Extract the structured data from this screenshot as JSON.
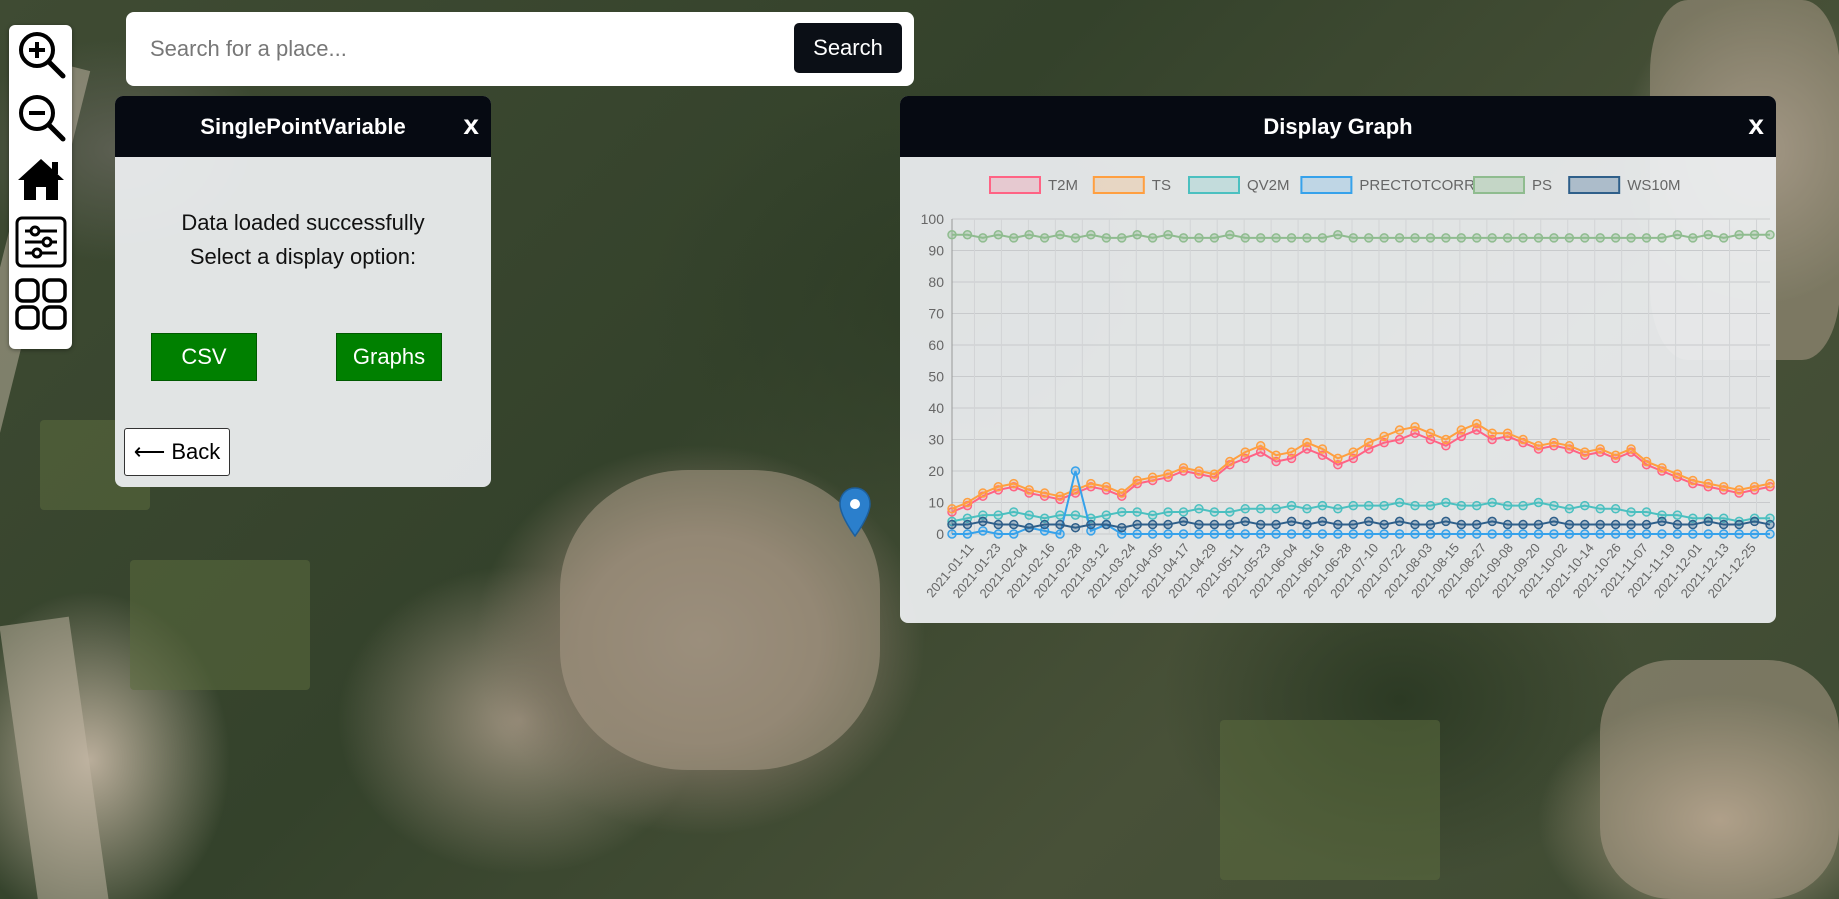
{
  "search": {
    "placeholder": "Search for a place...",
    "button_label": "Search"
  },
  "toolbar": {
    "tools": [
      {
        "icon": "zoom-in-icon"
      },
      {
        "icon": "zoom-out-icon"
      },
      {
        "icon": "home-icon"
      },
      {
        "icon": "sliders-icon"
      },
      {
        "icon": "grid-icon"
      }
    ]
  },
  "single_point_panel": {
    "title": "SinglePointVariable",
    "close_label": "x",
    "message_line1": "Data loaded successfully",
    "message_line2": "Select a display option:",
    "csv_label": "CSV",
    "graphs_label": "Graphs",
    "back_label": "⟵ Back"
  },
  "graph_panel": {
    "title": "Display Graph",
    "close_label": "x"
  },
  "colors": {
    "header_bg": "#060a12",
    "button_green": "#008000",
    "marker_blue": "#2b7fcc"
  },
  "chart_data": {
    "type": "line",
    "x_ticks": [
      "2021-01-11",
      "2021-01-23",
      "2021-02-04",
      "2021-02-16",
      "2021-02-28",
      "2021-03-12",
      "2021-03-24",
      "2021-04-05",
      "2021-04-17",
      "2021-04-29",
      "2021-05-11",
      "2021-05-23",
      "2021-06-04",
      "2021-06-16",
      "2021-06-28",
      "2021-07-10",
      "2021-07-22",
      "2021-08-03",
      "2021-08-15",
      "2021-08-27",
      "2021-09-08",
      "2021-09-20",
      "2021-10-02",
      "2021-10-14",
      "2021-10-26",
      "2021-11-07",
      "2021-11-19",
      "2021-12-01",
      "2021-12-13",
      "2021-12-25"
    ],
    "x_range": [
      "2021-01-01",
      "2021-12-31"
    ],
    "ylim": [
      0,
      100
    ],
    "y_ticks": [
      0,
      10,
      20,
      30,
      40,
      50,
      60,
      70,
      80,
      90,
      100
    ],
    "grid": true,
    "legend_position": "top",
    "series": [
      {
        "name": "T2M",
        "color": "#ff6384",
        "fill": "rgba(255,99,132,0.2)",
        "values": [
          7,
          9,
          12,
          14,
          15,
          13,
          12,
          11,
          13,
          15,
          14,
          12,
          16,
          17,
          18,
          20,
          19,
          18,
          22,
          24,
          26,
          23,
          24,
          27,
          25,
          22,
          24,
          27,
          29,
          30,
          32,
          30,
          28,
          31,
          33,
          30,
          31,
          29,
          27,
          28,
          27,
          25,
          26,
          24,
          26,
          22,
          20,
          18,
          16,
          15,
          14,
          13,
          14,
          15
        ]
      },
      {
        "name": "TS",
        "color": "#ff9f40",
        "fill": "rgba(255,159,64,0.2)",
        "values": [
          8,
          10,
          13,
          15,
          16,
          14,
          13,
          12,
          14,
          16,
          15,
          13,
          17,
          18,
          19,
          21,
          20,
          19,
          23,
          26,
          28,
          25,
          26,
          29,
          27,
          24,
          26,
          29,
          31,
          33,
          34,
          32,
          30,
          33,
          35,
          32,
          32,
          30,
          28,
          29,
          28,
          26,
          27,
          25,
          27,
          23,
          21,
          19,
          17,
          16,
          15,
          14,
          15,
          16
        ]
      },
      {
        "name": "QV2M",
        "color": "#4bc0c0",
        "fill": "rgba(75,192,192,0.2)",
        "values": [
          4,
          5,
          6,
          6,
          7,
          6,
          5,
          6,
          6,
          5,
          6,
          7,
          7,
          6,
          7,
          7,
          8,
          7,
          7,
          8,
          8,
          8,
          9,
          8,
          9,
          8,
          9,
          9,
          9,
          10,
          9,
          9,
          10,
          9,
          9,
          10,
          9,
          9,
          10,
          9,
          8,
          9,
          8,
          8,
          7,
          7,
          6,
          6,
          5,
          5,
          5,
          4,
          5,
          5
        ]
      },
      {
        "name": "PRECTOTCORR",
        "color": "#36a2eb",
        "fill": "rgba(54,162,235,0.2)",
        "values": [
          0,
          0,
          1,
          0,
          0,
          2,
          1,
          0,
          20,
          1,
          3,
          0,
          0,
          0,
          0,
          0,
          0,
          0,
          0,
          0,
          0,
          0,
          0,
          0,
          0,
          0,
          0,
          0,
          0,
          0,
          0,
          0,
          0,
          0,
          0,
          0,
          0,
          0,
          0,
          0,
          0,
          0,
          0,
          0,
          0,
          0,
          0,
          0,
          0,
          0,
          0,
          0,
          0,
          0
        ]
      },
      {
        "name": "PS",
        "color": "#8fbc8f",
        "fill": "rgba(143,188,143,0.35)",
        "values": [
          95,
          95,
          94,
          95,
          94,
          95,
          94,
          95,
          94,
          95,
          94,
          94,
          95,
          94,
          95,
          94,
          94,
          94,
          95,
          94,
          94,
          94,
          94,
          94,
          94,
          95,
          94,
          94,
          94,
          94,
          94,
          94,
          94,
          94,
          94,
          94,
          94,
          94,
          94,
          94,
          94,
          94,
          94,
          94,
          94,
          94,
          94,
          95,
          94,
          95,
          94,
          95,
          95,
          95
        ]
      },
      {
        "name": "WS10M",
        "color": "#2f5f8a",
        "fill": "rgba(47,95,138,0.3)",
        "values": [
          3,
          3,
          4,
          3,
          3,
          2,
          3,
          3,
          2,
          3,
          3,
          2,
          3,
          3,
          3,
          4,
          3,
          3,
          3,
          4,
          3,
          3,
          4,
          3,
          4,
          3,
          3,
          4,
          3,
          4,
          3,
          3,
          4,
          3,
          3,
          4,
          3,
          3,
          3,
          4,
          3,
          3,
          3,
          3,
          3,
          3,
          4,
          3,
          3,
          4,
          3,
          3,
          4,
          3
        ]
      }
    ]
  }
}
